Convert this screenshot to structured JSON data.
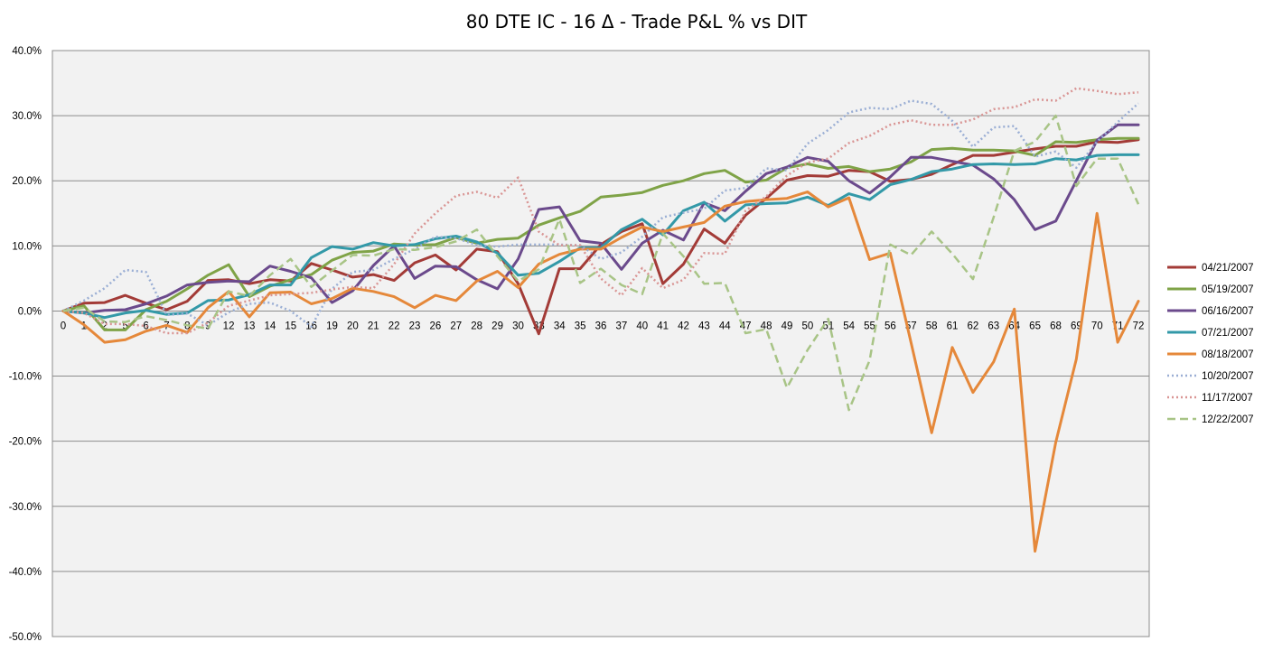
{
  "chart_data": {
    "type": "line",
    "title": "80 DTE IC - 16 Δ - Trade P&L % vs DIT",
    "xlabel": "",
    "ylabel": "",
    "ylim": [
      -50,
      40
    ],
    "y_tick_step": 10,
    "y_tick_labels": [
      "40.0%",
      "30.0%",
      "20.0%",
      "10.0%",
      "0.0%",
      "-10.0%",
      "-20.0%",
      "-30.0%",
      "-40.0%",
      "-50.0%"
    ],
    "grid": true,
    "legend_position": "right",
    "categories": [
      "0",
      "1",
      "2",
      "5",
      "6",
      "7",
      "8",
      "9",
      "12",
      "13",
      "14",
      "15",
      "16",
      "19",
      "20",
      "21",
      "22",
      "23",
      "26",
      "27",
      "28",
      "29",
      "30",
      "33",
      "34",
      "35",
      "36",
      "37",
      "40",
      "41",
      "42",
      "43",
      "44",
      "47",
      "48",
      "49",
      "50",
      "51",
      "54",
      "55",
      "56",
      "57",
      "58",
      "61",
      "62",
      "63",
      "64",
      "65",
      "68",
      "69",
      "70",
      "71",
      "72"
    ],
    "series": [
      {
        "name": "04/21/2007",
        "color": "#a33b37",
        "dash": "solid",
        "values": [
          0,
          1.2,
          1.3,
          2.4,
          1.2,
          0.2,
          1.5,
          4.7,
          4.8,
          4.2,
          4.8,
          4.6,
          7.3,
          6.3,
          5.2,
          5.6,
          4.7,
          7.4,
          8.6,
          6.3,
          9.5,
          9.1,
          4.2,
          -3.5,
          6.5,
          6.5,
          10.2,
          12.2,
          13.4,
          4.2,
          7.2,
          12.6,
          10.4,
          14.7,
          17.3,
          20.1,
          20.8,
          20.7,
          21.6,
          21.4,
          19.9,
          20.2,
          21.0,
          22.5,
          23.9,
          23.9,
          24.4,
          24.9,
          25.3,
          25.3,
          26.0,
          25.9,
          26.3
        ]
      },
      {
        "name": "05/19/2007",
        "color": "#7fa347",
        "dash": "solid",
        "values": [
          0,
          0.8,
          -2.9,
          -2.9,
          0.2,
          1.5,
          3.4,
          5.5,
          7.1,
          2.2,
          3.8,
          4.8,
          5.6,
          7.8,
          9.0,
          9.2,
          10.3,
          10.1,
          10.2,
          11.3,
          10.4,
          11.0,
          11.2,
          13.2,
          14.3,
          15.3,
          17.5,
          17.8,
          18.2,
          19.3,
          20.0,
          21.1,
          21.6,
          19.8,
          20.1,
          22.0,
          22.6,
          21.9,
          22.2,
          21.4,
          21.8,
          22.9,
          24.8,
          25.0,
          24.7,
          24.7,
          24.6,
          23.9,
          26.0,
          25.9,
          26.3,
          26.5,
          26.5
        ]
      },
      {
        "name": "06/16/2007",
        "color": "#6b4a8c",
        "dash": "solid",
        "values": [
          0,
          -0.3,
          0.1,
          0.2,
          1.1,
          2.3,
          4.0,
          4.4,
          4.6,
          4.5,
          6.9,
          6.1,
          5.1,
          1.3,
          3.1,
          7.0,
          10.0,
          5.0,
          6.9,
          6.8,
          4.8,
          3.4,
          8.0,
          15.6,
          16.0,
          10.8,
          10.4,
          6.4,
          10.4,
          12.4,
          10.9,
          16.6,
          15.4,
          18.4,
          21.1,
          22.1,
          23.6,
          23.0,
          20.0,
          18.1,
          20.6,
          23.6,
          23.6,
          23.0,
          22.4,
          20.3,
          17.1,
          12.5,
          13.8,
          20.0,
          26.2,
          28.6,
          28.6
        ]
      },
      {
        "name": "07/21/2007",
        "color": "#3399a8",
        "dash": "solid",
        "values": [
          0,
          -0.3,
          -1.0,
          -0.3,
          0.1,
          -0.5,
          -0.3,
          1.6,
          1.7,
          2.5,
          4.0,
          4.0,
          8.2,
          9.9,
          9.5,
          10.5,
          10.0,
          10.2,
          11.1,
          11.5,
          10.6,
          8.9,
          5.5,
          5.8,
          7.6,
          9.7,
          9.7,
          12.5,
          14.1,
          11.7,
          15.4,
          16.7,
          13.8,
          16.3,
          16.5,
          16.6,
          17.5,
          16.2,
          18.0,
          17.1,
          19.4,
          20.2,
          21.4,
          21.8,
          22.5,
          22.6,
          22.5,
          22.6,
          23.4,
          23.2,
          23.9,
          24.0,
          24.0
        ]
      },
      {
        "name": "08/18/2007",
        "color": "#e5883a",
        "dash": "solid",
        "values": [
          0,
          -2.1,
          -4.8,
          -4.4,
          -3.1,
          -2.2,
          -3.3,
          0.5,
          3.0,
          -0.9,
          2.8,
          2.9,
          1.1,
          1.9,
          3.5,
          3.0,
          2.2,
          0.5,
          2.4,
          1.6,
          4.6,
          6.1,
          3.6,
          7.2,
          8.7,
          9.5,
          9.5,
          11.3,
          12.9,
          12.2,
          12.9,
          13.6,
          16.1,
          16.8,
          17.1,
          17.3,
          18.3,
          16.0,
          17.4,
          7.9,
          8.9,
          -4.8,
          -18.7,
          -5.6,
          -12.5,
          -7.8,
          0.3,
          -36.9,
          -20.2,
          -7.4,
          15.0,
          -4.8,
          1.5
        ]
      },
      {
        "name": "10/20/2007",
        "color": "#9aaed4",
        "dash": "dot",
        "values": [
          0,
          1.6,
          3.5,
          6.3,
          6.0,
          -0.6,
          -0.4,
          -2.2,
          -0.2,
          1.1,
          1.3,
          0.0,
          -2.4,
          3.4,
          6.0,
          6.3,
          8.0,
          9.5,
          11.4,
          11.2,
          10.1,
          9.9,
          10.2,
          10.2,
          10.2,
          10.1,
          8.0,
          9.0,
          11.4,
          14.4,
          15.1,
          15.7,
          18.5,
          18.9,
          21.9,
          21.6,
          25.7,
          27.8,
          30.5,
          31.2,
          31.0,
          32.3,
          31.8,
          29.2,
          25.2,
          28.2,
          28.4,
          23.7,
          24.5,
          22.0,
          26.0,
          29.0,
          31.9
        ]
      },
      {
        "name": "11/17/2007",
        "color": "#d99594",
        "dash": "dot",
        "values": [
          0,
          -0.3,
          -2.0,
          -2.0,
          -2.3,
          -3.4,
          -3.4,
          -1.8,
          0.8,
          1.6,
          2.4,
          2.6,
          2.8,
          3.3,
          3.7,
          3.5,
          7.2,
          11.9,
          15.0,
          17.7,
          18.3,
          17.4,
          20.5,
          12.2,
          10.1,
          10.1,
          5.0,
          2.4,
          6.6,
          3.5,
          4.8,
          8.9,
          8.8,
          15.4,
          17.6,
          20.8,
          22.8,
          23.4,
          25.8,
          26.9,
          28.6,
          29.3,
          28.6,
          28.6,
          29.4,
          31.0,
          31.3,
          32.5,
          32.3,
          34.2,
          33.8,
          33.3,
          33.6
        ]
      },
      {
        "name": "12/22/2007",
        "color": "#a8c486",
        "dash": "dash",
        "values": [
          0,
          0.5,
          -1.6,
          -1.7,
          -0.8,
          -1.4,
          -2.2,
          -2.7,
          3.0,
          2.3,
          5.5,
          8.0,
          3.7,
          6.2,
          8.6,
          8.5,
          9.5,
          9.4,
          9.8,
          10.7,
          12.5,
          8.4,
          4.6,
          6.4,
          14.1,
          4.3,
          6.5,
          4.0,
          2.6,
          11.9,
          8.4,
          4.2,
          4.3,
          -3.4,
          -2.8,
          -11.8,
          -6.0,
          -1.2,
          -15.2,
          -7.6,
          10.2,
          8.6,
          12.2,
          8.8,
          4.9,
          14.4,
          24.6,
          26.0,
          30.0,
          19.2,
          23.4,
          23.4,
          16.4
        ]
      }
    ]
  }
}
